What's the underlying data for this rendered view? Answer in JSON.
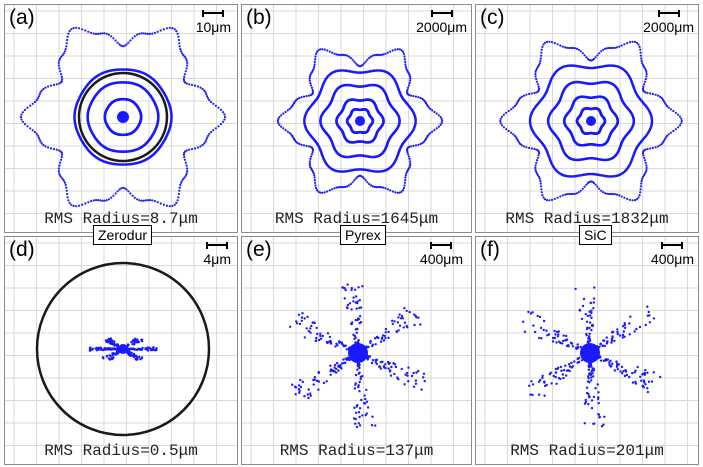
{
  "panels": [
    {
      "label": "(a)",
      "scale": "10μm",
      "rms": "RMS Radius=8.7μm",
      "pattern": "aberrated",
      "material": "Zerodur",
      "airy": true
    },
    {
      "label": "(b)",
      "scale": "2000μm",
      "rms": "RMS Radius=1645μm",
      "pattern": "aberrated",
      "material": "Pyrex",
      "airy": false
    },
    {
      "label": "(c)",
      "scale": "2000μm",
      "rms": "RMS Radius=1832μm",
      "pattern": "aberrated",
      "material": "SiC",
      "airy": false
    },
    {
      "label": "(d)",
      "scale": "4μm",
      "rms": "RMS Radius=0.5μm",
      "pattern": "corrected",
      "material": "Zerodur",
      "airy": true
    },
    {
      "label": "(e)",
      "scale": "400μm",
      "rms": "RMS Radius=137μm",
      "pattern": "corrected",
      "material": "Pyrex",
      "airy": false
    },
    {
      "label": "(f)",
      "scale": "400μm",
      "rms": "RMS Radius=201μm",
      "pattern": "corrected",
      "material": "SiC",
      "airy": false
    }
  ],
  "materials": [
    "Zerodur",
    "Pyrex",
    "SiC"
  ],
  "colors": {
    "spot": "#1a1aff",
    "airy": "#1a1a1a",
    "grid": "#d9d9d9",
    "border": "#8c8c8c"
  }
}
